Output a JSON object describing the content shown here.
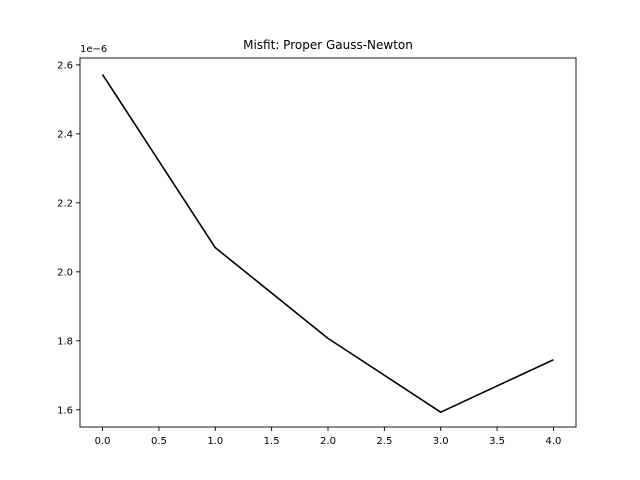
{
  "chart_data": {
    "type": "line",
    "title": "Misfit: Proper Gauss-Newton",
    "xlabel": "",
    "ylabel": "",
    "offset_label": "1e−6",
    "x": [
      0,
      1,
      2,
      3,
      4
    ],
    "y": [
      2.572,
      2.07,
      1.807,
      1.593,
      1.745
    ],
    "xlim": [
      -0.2,
      4.2
    ],
    "ylim": [
      1.55,
      2.62
    ],
    "x_ticks": [
      0,
      0.5,
      1,
      1.5,
      2,
      2.5,
      3,
      3.5,
      4
    ],
    "x_tick_labels": [
      "0.0",
      "0.5",
      "1.0",
      "1.5",
      "2.0",
      "2.5",
      "3.0",
      "3.5",
      "4.0"
    ],
    "y_ticks": [
      1.6,
      1.8,
      2.0,
      2.2,
      2.4,
      2.6
    ],
    "y_tick_labels": [
      "1.6",
      "1.8",
      "2.0",
      "2.2",
      "2.4",
      "2.6"
    ],
    "grid": false,
    "line_color": "#000000"
  }
}
